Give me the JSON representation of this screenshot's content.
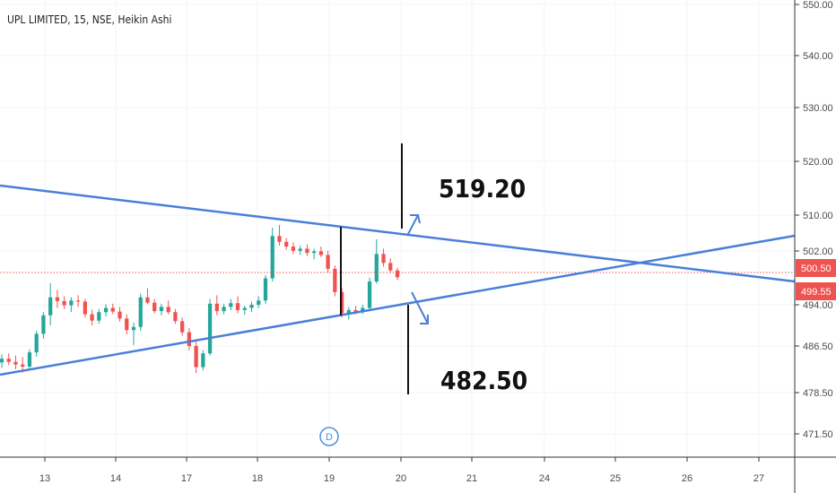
{
  "chart_data": {
    "type": "candlestick",
    "title": "UPL LIMITED, 15, NSE, Heikin Ashi",
    "y_ticks": [
      "550.00",
      "540.00",
      "530.00",
      "520.00",
      "510.00",
      "502.00",
      "494.00",
      "486.50",
      "478.50",
      "471.50"
    ],
    "x_ticks": [
      "13",
      "14",
      "17",
      "18",
      "19",
      "20",
      "21",
      "24",
      "25",
      "26",
      "27"
    ],
    "price_tags": [
      {
        "label": "500.50",
        "color": "#ef5350"
      },
      {
        "label": "499.55",
        "color": "#ef5350"
      }
    ],
    "annotations": {
      "upper_target": "519.20",
      "lower_target": "482.50",
      "marker": "D"
    },
    "colors": {
      "up": "#26a69a",
      "down": "#ef5350",
      "trendline": "#4a7fd8",
      "price_line": "#ef5350"
    },
    "candles": [
      [
        483.5,
        485.0,
        482.5,
        484.2
      ],
      [
        484.2,
        485.2,
        483.0,
        483.6
      ],
      [
        483.6,
        484.8,
        482.2,
        483.1
      ],
      [
        483.1,
        484.5,
        481.6,
        482.7
      ],
      [
        482.7,
        486.0,
        482.0,
        485.4
      ],
      [
        485.4,
        489.5,
        484.6,
        488.9
      ],
      [
        488.9,
        493.0,
        488.0,
        492.4
      ],
      [
        492.4,
        498.5,
        490.5,
        495.8
      ],
      [
        495.8,
        497.2,
        493.8,
        495.1
      ],
      [
        495.1,
        496.0,
        493.6,
        494.3
      ],
      [
        494.3,
        495.8,
        493.0,
        495.2
      ],
      [
        495.2,
        496.2,
        494.0,
        495.0
      ],
      [
        495.0,
        495.5,
        492.0,
        492.6
      ],
      [
        492.6,
        493.5,
        490.5,
        491.4
      ],
      [
        491.4,
        493.6,
        490.8,
        493.0
      ],
      [
        493.0,
        494.5,
        492.2,
        493.8
      ],
      [
        493.8,
        494.6,
        492.6,
        493.1
      ],
      [
        493.1,
        494.0,
        491.2,
        491.8
      ],
      [
        491.8,
        492.6,
        488.8,
        489.6
      ],
      [
        489.6,
        491.0,
        486.8,
        490.2
      ],
      [
        490.2,
        496.5,
        489.5,
        495.8
      ],
      [
        495.8,
        497.5,
        494.5,
        494.8
      ],
      [
        494.8,
        495.5,
        492.8,
        493.2
      ],
      [
        493.2,
        494.6,
        492.4,
        494.0
      ],
      [
        494.0,
        495.2,
        492.6,
        493.0
      ],
      [
        493.0,
        493.6,
        490.8,
        491.3
      ],
      [
        491.3,
        492.0,
        488.5,
        489.2
      ],
      [
        489.2,
        490.0,
        485.8,
        486.6
      ],
      [
        486.6,
        487.4,
        481.5,
        482.6
      ],
      [
        482.6,
        485.8,
        482.0,
        485.2
      ],
      [
        485.2,
        495.5,
        484.8,
        494.6
      ],
      [
        494.6,
        496.2,
        492.4,
        493.2
      ],
      [
        493.2,
        494.6,
        492.6,
        494.0
      ],
      [
        494.0,
        495.5,
        493.4,
        494.7
      ],
      [
        494.7,
        496.0,
        492.8,
        493.4
      ],
      [
        493.4,
        494.2,
        492.5,
        493.8
      ],
      [
        493.8,
        495.0,
        493.0,
        494.4
      ],
      [
        494.4,
        496.0,
        493.8,
        495.2
      ],
      [
        495.2,
        500.0,
        494.6,
        499.4
      ],
      [
        499.4,
        509.0,
        498.8,
        507.4
      ],
      [
        507.4,
        509.5,
        505.6,
        506.3
      ],
      [
        506.3,
        507.0,
        504.8,
        505.4
      ],
      [
        505.4,
        506.2,
        504.0,
        504.6
      ],
      [
        504.6,
        505.6,
        503.8,
        505.0
      ],
      [
        505.0,
        505.8,
        503.6,
        504.2
      ],
      [
        504.2,
        505.0,
        503.0,
        504.5
      ],
      [
        504.5,
        505.4,
        503.4,
        503.8
      ],
      [
        503.8,
        504.6,
        500.5,
        501.2
      ],
      [
        501.2,
        501.8,
        496.0,
        496.8
      ],
      [
        496.8,
        497.6,
        492.0,
        492.8
      ],
      [
        492.8,
        494.0,
        491.6,
        493.4
      ],
      [
        493.4,
        494.2,
        492.6,
        493.0
      ],
      [
        493.0,
        494.4,
        492.6,
        493.8
      ],
      [
        493.8,
        499.5,
        493.2,
        498.8
      ],
      [
        498.8,
        506.8,
        498.4,
        504.0
      ],
      [
        504.0,
        505.0,
        501.6,
        502.3
      ],
      [
        502.3,
        503.2,
        500.4,
        500.9
      ],
      [
        500.9,
        501.4,
        499.1,
        499.6
      ]
    ]
  }
}
